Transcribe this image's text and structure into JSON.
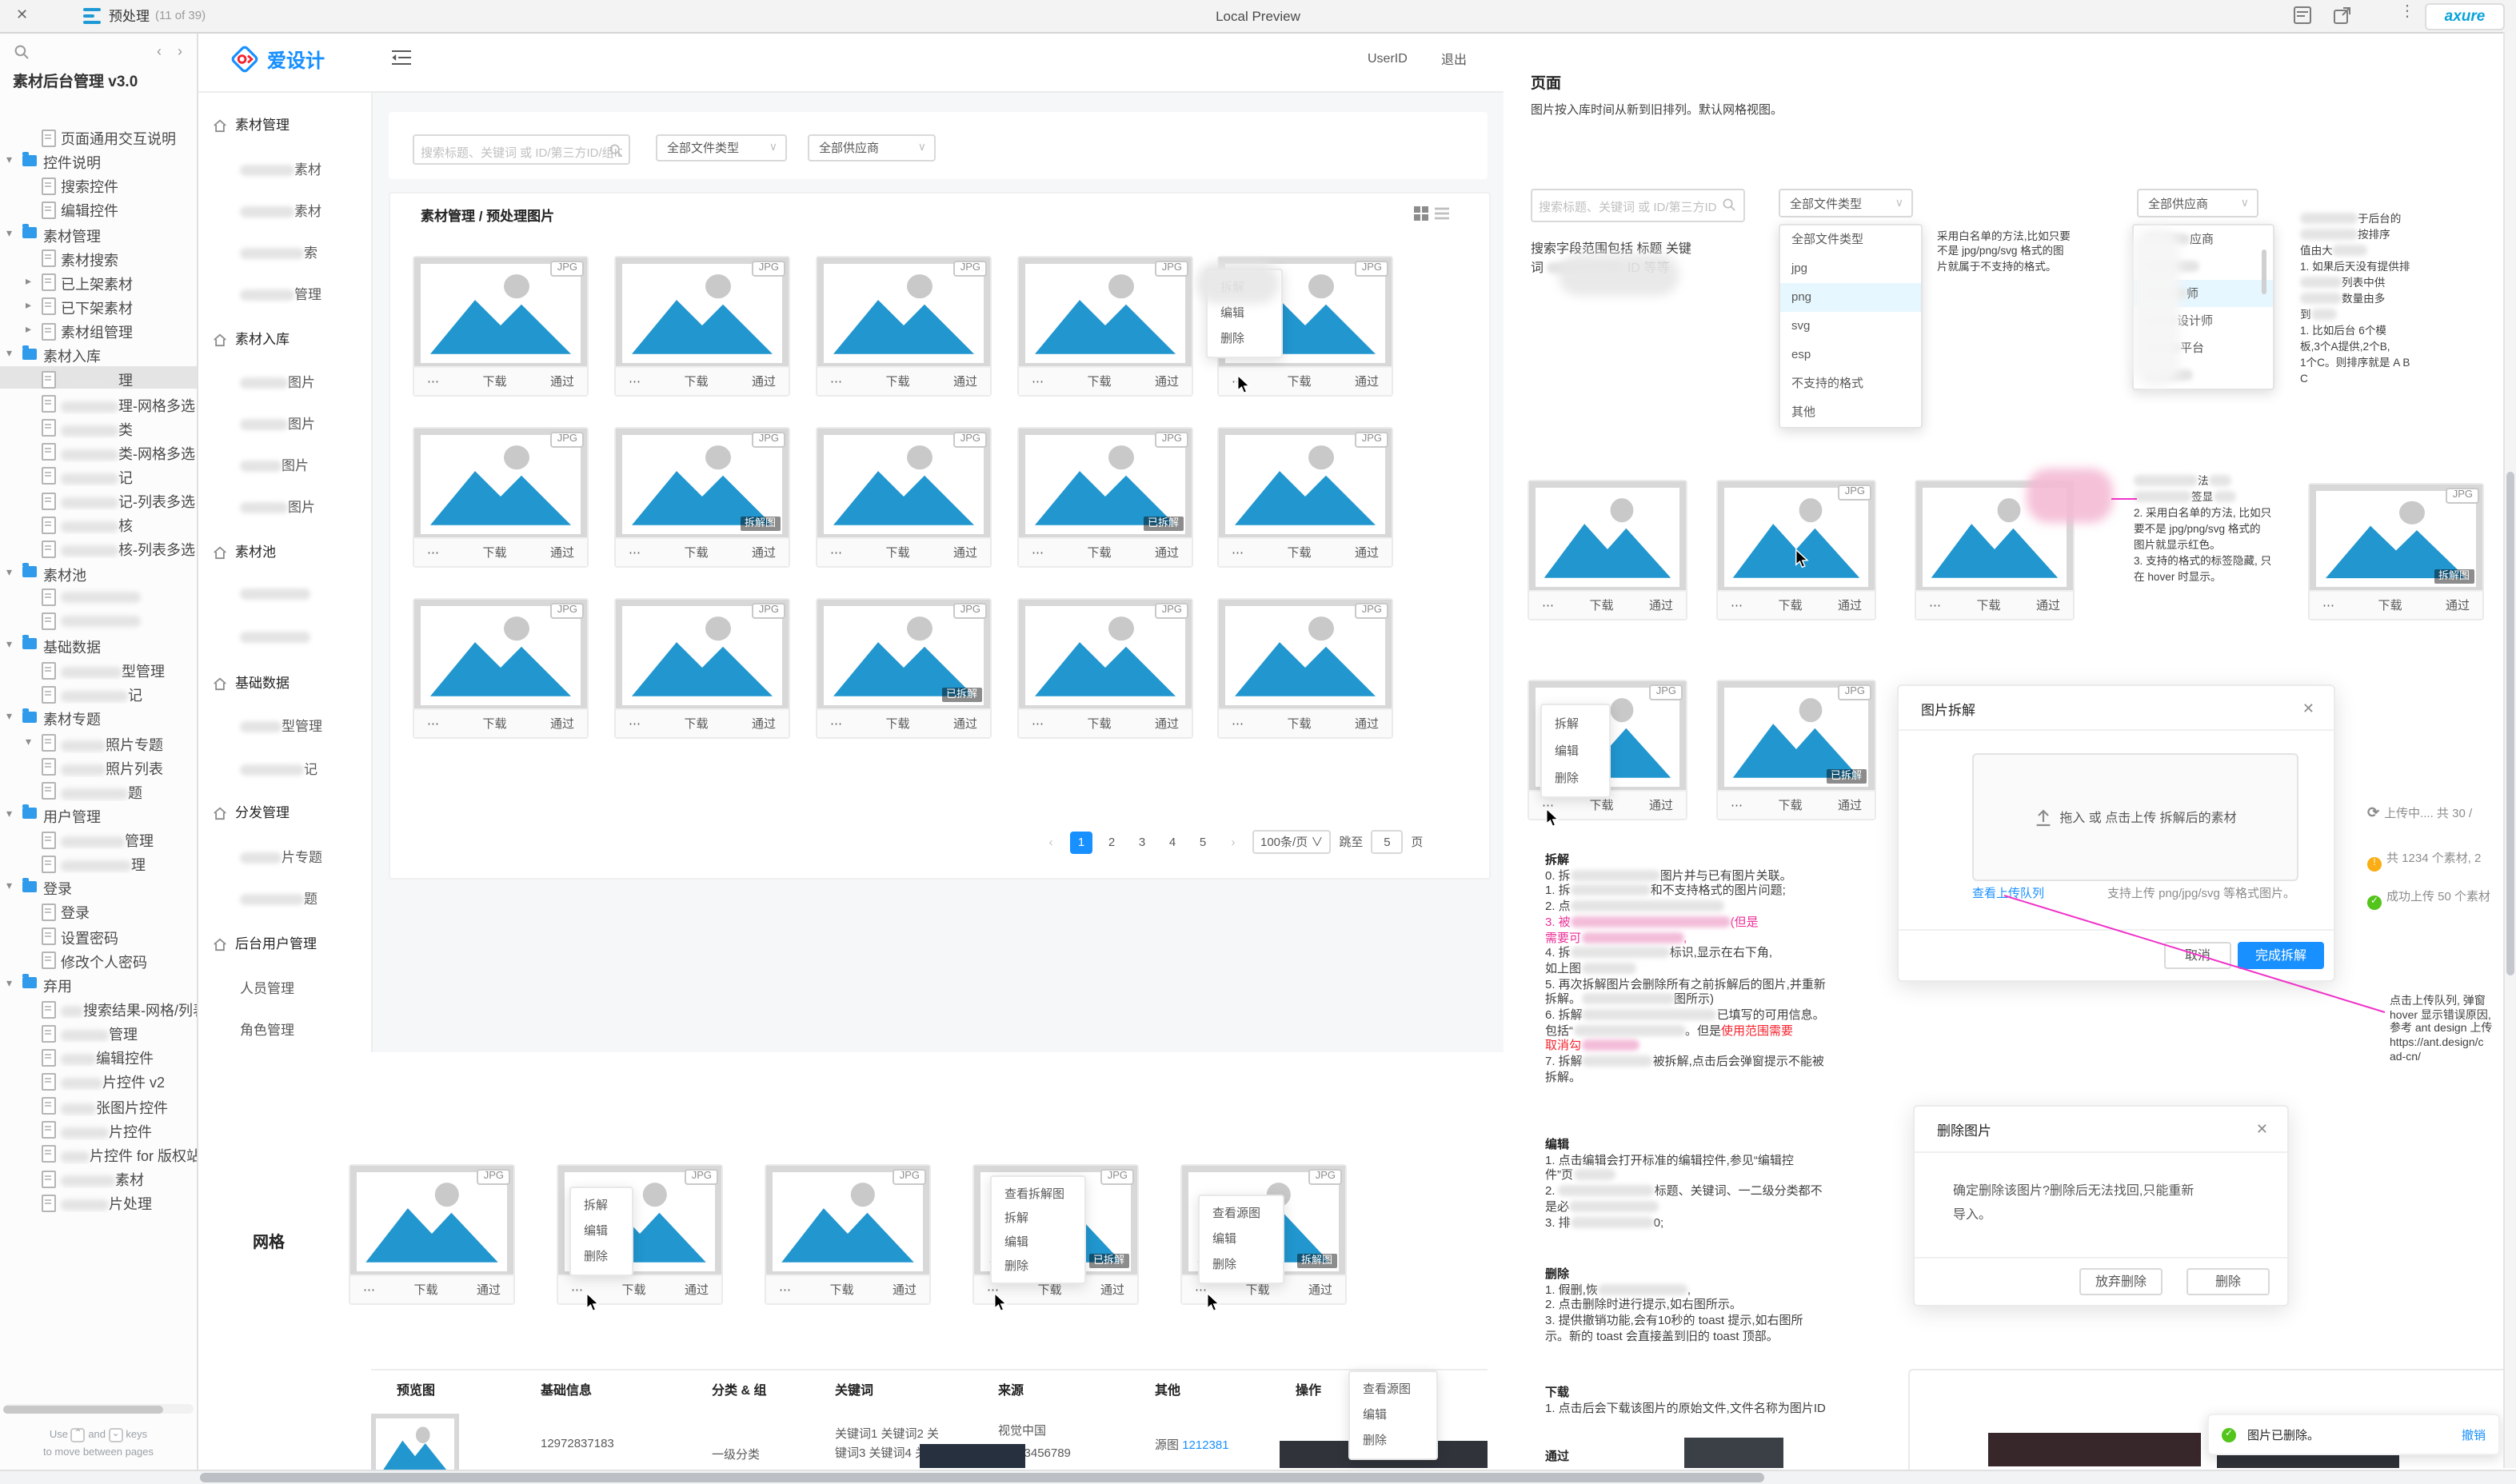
{
  "topbar": {
    "close": "✕",
    "tab": "预处理",
    "tab_count": "(11 of 39)",
    "center": "Local Preview",
    "more": "⋮",
    "logo": "axure"
  },
  "sidebar": {
    "title": "素材后台管理 v3.0",
    "prev": "‹",
    "next": "›",
    "hint": {
      "use": "Use",
      "k1": "⌃",
      "and": "and",
      "k2": "⌄",
      "keys": "keys",
      "line2": "to move between pages"
    },
    "tree": [
      {
        "icon": "page",
        "label": "页面通用交互说明",
        "lvl": 1
      },
      {
        "icon": "folder",
        "label": "控件说明",
        "lvl": 0,
        "arrow": "down"
      },
      {
        "icon": "page",
        "label": "搜索控件",
        "lvl": 1
      },
      {
        "icon": "page",
        "label": "编辑控件",
        "lvl": 1
      },
      {
        "icon": "folder",
        "label": "素材管理",
        "lvl": 0,
        "arrow": "down"
      },
      {
        "icon": "page",
        "label": "素材搜索",
        "lvl": 1
      },
      {
        "icon": "page",
        "label": "已上架素材",
        "lvl": 1,
        "arrow": "right"
      },
      {
        "icon": "page",
        "label": "已下架素材",
        "lvl": 1,
        "arrow": "right"
      },
      {
        "icon": "page",
        "label": "素材组管理",
        "lvl": 1,
        "arrow": "right"
      },
      {
        "icon": "folder",
        "label": "素材入库",
        "lvl": 0,
        "arrow": "down"
      },
      {
        "icon": "page",
        "label": "理",
        "blur": 36,
        "lvl": 1,
        "selected": true
      },
      {
        "icon": "page",
        "label": "理-网格多选",
        "blur": 36,
        "lvl": 1
      },
      {
        "icon": "page",
        "label": "类",
        "blur": 36,
        "lvl": 1
      },
      {
        "icon": "page",
        "label": "类-网格多选",
        "blur": 36,
        "lvl": 1
      },
      {
        "icon": "page",
        "label": "记",
        "blur": 36,
        "lvl": 1
      },
      {
        "icon": "page",
        "label": "记-列表多选",
        "blur": 36,
        "lvl": 1
      },
      {
        "icon": "page",
        "label": "核",
        "blur": 36,
        "lvl": 1
      },
      {
        "icon": "page",
        "label": "核-列表多选",
        "blur": 36,
        "lvl": 1
      },
      {
        "icon": "folder",
        "label": "素材池",
        "lvl": 0,
        "arrow": "down"
      },
      {
        "icon": "page",
        "label": "",
        "blur": 50,
        "lvl": 1
      },
      {
        "icon": "page",
        "label": "",
        "blur": 50,
        "lvl": 1
      },
      {
        "icon": "folder",
        "label": "基础数据",
        "lvl": 0,
        "arrow": "down"
      },
      {
        "icon": "page",
        "label": "型管理",
        "blur": 38,
        "lvl": 1
      },
      {
        "icon": "page",
        "label": "记",
        "blur": 42,
        "lvl": 1
      },
      {
        "icon": "folder",
        "label": "素材专题",
        "lvl": 0,
        "arrow": "down"
      },
      {
        "icon": "page",
        "label": "照片专题",
        "blur": 28,
        "lvl": 1,
        "arrow": "down"
      },
      {
        "icon": "page",
        "label": "照片列表",
        "blur": 28,
        "lvl": 1
      },
      {
        "icon": "page",
        "label": "题",
        "blur": 42,
        "lvl": 1
      },
      {
        "icon": "folder",
        "label": "用户管理",
        "lvl": 0,
        "arrow": "down"
      },
      {
        "icon": "page",
        "label": "管理",
        "blur": 40,
        "lvl": 1
      },
      {
        "icon": "page",
        "label": "理",
        "blur": 44,
        "lvl": 1
      },
      {
        "icon": "folder",
        "label": "登录",
        "lvl": 0,
        "arrow": "down"
      },
      {
        "icon": "page",
        "label": "登录",
        "lvl": 1
      },
      {
        "icon": "page",
        "label": "设置密码",
        "lvl": 1
      },
      {
        "icon": "page",
        "label": "修改个人密码",
        "lvl": 1
      },
      {
        "icon": "folder",
        "label": "弃用",
        "lvl": 0,
        "arrow": "down"
      },
      {
        "icon": "page",
        "label": "搜索结果-网格/列表多选",
        "blur": 14,
        "lvl": 1
      },
      {
        "icon": "page",
        "label": "管理",
        "blur": 30,
        "lvl": 1
      },
      {
        "icon": "page",
        "label": "编辑控件",
        "blur": 22,
        "lvl": 1
      },
      {
        "icon": "page",
        "label": "片控件 v2",
        "blur": 26,
        "lvl": 1
      },
      {
        "icon": "page",
        "label": "张图片控件",
        "blur": 22,
        "lvl": 1
      },
      {
        "icon": "page",
        "label": "片控件",
        "blur": 30,
        "lvl": 1
      },
      {
        "icon": "page",
        "label": "片控件 for 版权站",
        "blur": 18,
        "lvl": 1
      },
      {
        "icon": "page",
        "label": "素材",
        "blur": 34,
        "lvl": 1
      },
      {
        "icon": "page",
        "label": "片处理",
        "blur": 30,
        "lvl": 1
      }
    ]
  },
  "app": {
    "brand": "爱设计",
    "userid": "UserID",
    "logout": "退出",
    "menu": [
      {
        "type": "sec",
        "label": "素材管理"
      },
      {
        "type": "it",
        "blur": 34,
        "label": "素材"
      },
      {
        "type": "it",
        "blur": 34,
        "label": "素材"
      },
      {
        "type": "it",
        "blur": 40,
        "label": "索"
      },
      {
        "type": "it",
        "blur": 34,
        "label": "管理"
      },
      {
        "type": "sec",
        "label": "素材入库"
      },
      {
        "type": "it",
        "blur": 30,
        "label": "图片"
      },
      {
        "type": "it",
        "blur": 30,
        "label": "图片"
      },
      {
        "type": "it",
        "blur": 26,
        "label": "图片"
      },
      {
        "type": "it",
        "blur": 30,
        "label": "图片"
      },
      {
        "type": "sec",
        "label": "素材池"
      },
      {
        "type": "it",
        "blur": 44,
        "label": ""
      },
      {
        "type": "it",
        "blur": 44,
        "label": ""
      },
      {
        "type": "sec",
        "label": "基础数据"
      },
      {
        "type": "it",
        "blur": 26,
        "label": "型管理"
      },
      {
        "type": "it",
        "blur": 40,
        "label": "记"
      },
      {
        "type": "sec",
        "label": "分发管理"
      },
      {
        "type": "it",
        "blur": 26,
        "label": "片专题"
      },
      {
        "type": "it",
        "blur": 40,
        "label": "题"
      },
      {
        "type": "sec",
        "label": "后台用户管理"
      },
      {
        "type": "it",
        "label": "人员管理"
      },
      {
        "type": "it",
        "label": "角色管理"
      }
    ],
    "toolbar": {
      "search_placeholder": "搜索标题、关键词 或 ID/第三方ID/组ID",
      "type_filter": "全部文件类型",
      "vendor_filter": "全部供应商",
      "chevron": "∨"
    },
    "breadcrumb": "素材管理 / 预处理图片",
    "card": {
      "jpg": "JPG",
      "more": "⋯",
      "download": "下载",
      "approve": "通过",
      "badge_split": "拆解图",
      "badge_done": "已拆解"
    },
    "menus": {
      "split3": [
        "拆解",
        "编辑",
        "删除"
      ],
      "split4": [
        "查看拆解图",
        "拆解",
        "编辑",
        "删除"
      ],
      "source3": [
        "查看源图",
        "编辑",
        "删除"
      ]
    },
    "pagination": {
      "prev": "‹",
      "pages": [
        "1",
        "2",
        "3",
        "4",
        "5"
      ],
      "active": "1",
      "next": "›",
      "size": "100条/页",
      "jump_to": "跳至",
      "jump_val": "5",
      "jump_unit": "页"
    },
    "grid_section_label": "网格",
    "table": {
      "headers": [
        "预览图",
        "基础信息",
        "分类 & 组",
        "关键词",
        "来源",
        "其他",
        "操作"
      ],
      "row": {
        "info": "12972837183",
        "category": "一级分类",
        "keywords_l1": "关键词1 关键词2 关",
        "keywords_l2": "键词3 关键词4 关键",
        "source_l1": "视觉中国",
        "source_l2": "VCG3456789",
        "other_label": "源图",
        "other_link": "1212381"
      }
    }
  },
  "notes": {
    "page_title": "页面",
    "page_desc": "图片按入库时间从新到旧排列。默认网格视图。",
    "search_placeholder": "搜索标题、关键词 或 ID/第三方ID",
    "type_filter": "全部文件类型",
    "vendor_filter": "全部供应商",
    "chevron": "∨",
    "type_options": [
      "全部文件类型",
      "jpg",
      "png",
      "svg",
      "esp",
      "不支持的格式",
      "其他"
    ],
    "type_highlight": "png",
    "vendor_options": [
      {
        "blur": 28,
        "label": "应商"
      },
      {
        "blur": 34,
        "label": ""
      },
      {
        "blur": 26,
        "label": "师",
        "hl": true
      },
      {
        "blur": 20,
        "label": "设计师"
      },
      {
        "blur": 22,
        "label": "平台"
      },
      {
        "blur": 30,
        "label": ""
      }
    ],
    "blocks": {
      "search_note": {
        "lines": [
          [
            "搜索字段范围包括 标题 关键"
          ],
          [
            "词 ",
            {
              "b": 48
            },
            " ID 等等"
          ]
        ]
      },
      "type_note": {
        "lines": [
          [
            "采用白名单的方法,比如只要"
          ],
          [
            "不是 jpg/png/svg 格式的图"
          ],
          [
            "片就属于不支持的格式。"
          ]
        ]
      },
      "vendor_note": {
        "lines": [
          [
            {
              "b": 36
            },
            "于后台的"
          ],
          [
            {
              "b": 36
            },
            "按排序"
          ],
          [
            "值由大",
            {
              "b": 22
            }
          ],
          [
            "1. 如果后天没有提供排"
          ],
          [
            {
              "b": 26
            },
            "列表中供"
          ],
          [
            {
              "b": 26
            },
            "数量由多"
          ],
          [
            "到",
            {
              "b": 16
            }
          ],
          [
            "  1. 比如后台 6个模"
          ],
          [
            "板,3个A提供,2个B,"
          ],
          [
            "1个C。则排序就是 A B"
          ],
          [
            "C"
          ]
        ]
      },
      "hover_note": {
        "lines": [
          [
            {
              "b": 40
            },
            "法",
            {
              "b": 14
            }
          ],
          [
            {
              "b": 36
            },
            "签显",
            {
              "b": 14
            }
          ],
          [
            "2. 采用白名单的方法, 比如只"
          ],
          [
            "要不是 jpg/png/svg 格式的"
          ],
          [
            "图片就显示红色。"
          ],
          [
            "3. 支持的格式的标签隐藏, 只"
          ],
          [
            "在 hover 时显示。"
          ]
        ]
      },
      "chaijie": {
        "title": "拆解",
        "lines": [
          [
            "0. 拆",
            {
              "b": 56
            },
            "图片并与已有图片关联。"
          ],
          [
            "1. 拆",
            {
              "b": 50
            },
            "和不支持格式的图片问题;"
          ],
          [
            "2. 点",
            {
              "b": 96
            }
          ],
          [
            {
              "t": "3. 被",
              "s": "pink"
            },
            {
              "b": 100,
              "p": true
            },
            {
              "t": "(但是",
              "s": "pink"
            }
          ],
          [
            {
              "t": "需要可",
              "s": "pink"
            },
            {
              "b": 64,
              "p": true
            },
            {
              "t": ",",
              "s": "pink"
            }
          ],
          [
            "4. 拆",
            {
              "b": 62
            },
            "标识,显示在右下角,"
          ],
          [
            "如上图",
            {
              "b": 34
            }
          ],
          [
            "5. 再次拆解图片会删除所有之前拆解后的图片,并重新"
          ],
          [
            "拆解。",
            {
              "b": 58
            },
            "图所示)"
          ],
          [
            "6. 拆解",
            {
              "b": 84
            },
            "已填写的可用信息。"
          ],
          [
            "包括“",
            {
              "b": 70
            },
            "。但是",
            {
              "t": "使用范围需要",
              "s": "red"
            }
          ],
          [
            {
              "t": "取消勾",
              "s": "red"
            },
            {
              "b": 36,
              "p": true
            }
          ],
          [
            "7. 拆解",
            {
              "b": 44
            },
            "被拆解,点击后会弹窗提示不能被"
          ],
          [
            "拆解。"
          ]
        ]
      },
      "bianji": {
        "title": "编辑",
        "lines": [
          [
            "1. 点击编辑会打开标准的编辑控件,参见“编辑控"
          ],
          [
            "件”页",
            {
              "b": 26
            }
          ],
          [
            "2. ",
            {
              "b": 60
            },
            "标题、关键词、一二级分类都不"
          ],
          [
            "是必",
            {
              "b": 56
            }
          ],
          [
            "3. 排",
            {
              "b": 52
            },
            "0;"
          ]
        ]
      },
      "shanchu": {
        "title": "删除",
        "lines": [
          [
            "1. 假删,恢",
            {
              "b": 56
            },
            ","
          ],
          [
            "2. 点击删除时进行提示,如右图所示。"
          ],
          [
            "3. 提供撤销功能,会有10秒的 toast 提示,如右图所"
          ],
          [
            "示。新的 toast 会直接盖到旧的 toast 顶部。"
          ]
        ]
      },
      "xiazai": {
        "title": "下载",
        "lines": [
          [
            "1. 点击后会下载该图片的原始文件,文件名称为图片ID"
          ]
        ]
      },
      "tongguo": {
        "title": "通过",
        "lines": []
      },
      "antd": {
        "lines": [
          [
            "点击上传队列, 弹窗"
          ],
          [
            "hover 显示错误原因,"
          ],
          [
            "参考 ant design 上传"
          ],
          [
            "https://ant.design/c"
          ],
          [
            "ad-cn/"
          ]
        ]
      }
    },
    "status": [
      {
        "icon": "sync",
        "text": "上传中.... 共 30 /"
      },
      {
        "icon": "warn",
        "text": "共 1234 个素材, 2"
      },
      {
        "icon": "ok",
        "text": "成功上传 50 个素材"
      }
    ]
  },
  "modals": {
    "split": {
      "title": "图片拆解",
      "close": "✕",
      "dropzone": "拖入 或 点击上传 拆解后的素材",
      "queue_link": "查看上传队列",
      "support": "支持上传 png/jpg/svg 等格式图片。",
      "cancel": "取消",
      "ok": "完成拆解"
    },
    "del": {
      "title": "删除图片",
      "close": "✕",
      "body_l1": "确定删除该图片?删除后无法找回,只能重新",
      "body_l2": "导入。",
      "abandon": "放弃删除",
      "ok": "删除"
    }
  },
  "toast": {
    "text": "图片已删除。",
    "action": "撤销"
  }
}
